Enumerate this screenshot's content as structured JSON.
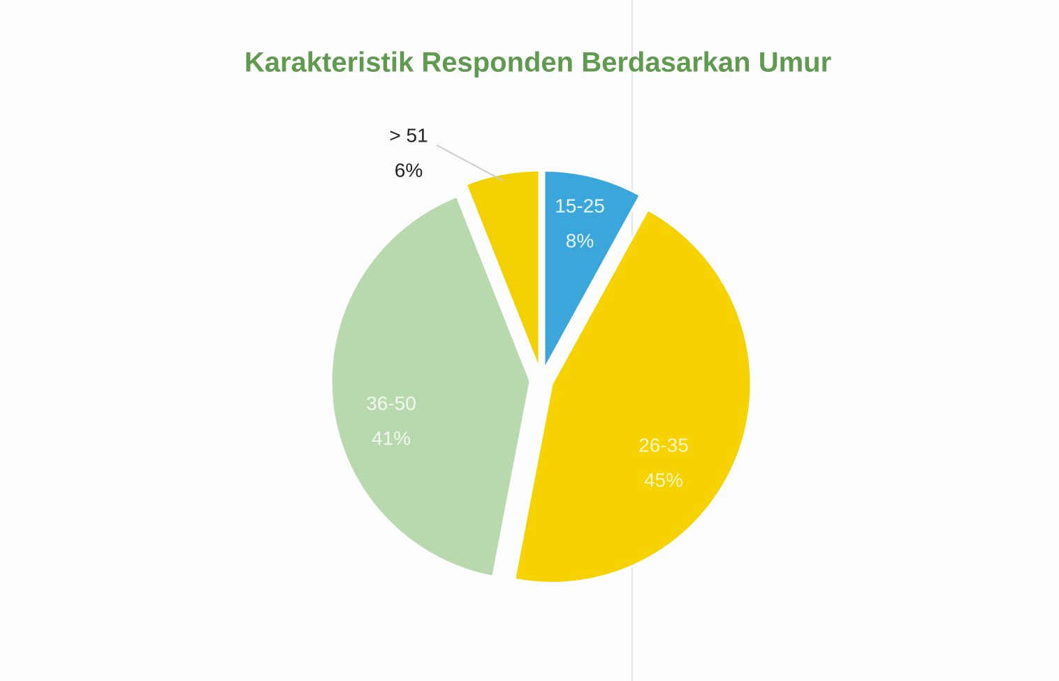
{
  "chart_data": {
    "type": "pie",
    "title": "Karakteristik Responden Berdasarkan Umur",
    "categories": [
      "15-25",
      "26-35",
      "36-50",
      "> 51"
    ],
    "values": [
      8,
      45,
      41,
      6
    ],
    "value_labels": [
      "8%",
      "45%",
      "41%",
      "6%"
    ],
    "colors": [
      "#3aa6db",
      "#f6d200",
      "#b8d8ae",
      "#f3d000"
    ]
  }
}
